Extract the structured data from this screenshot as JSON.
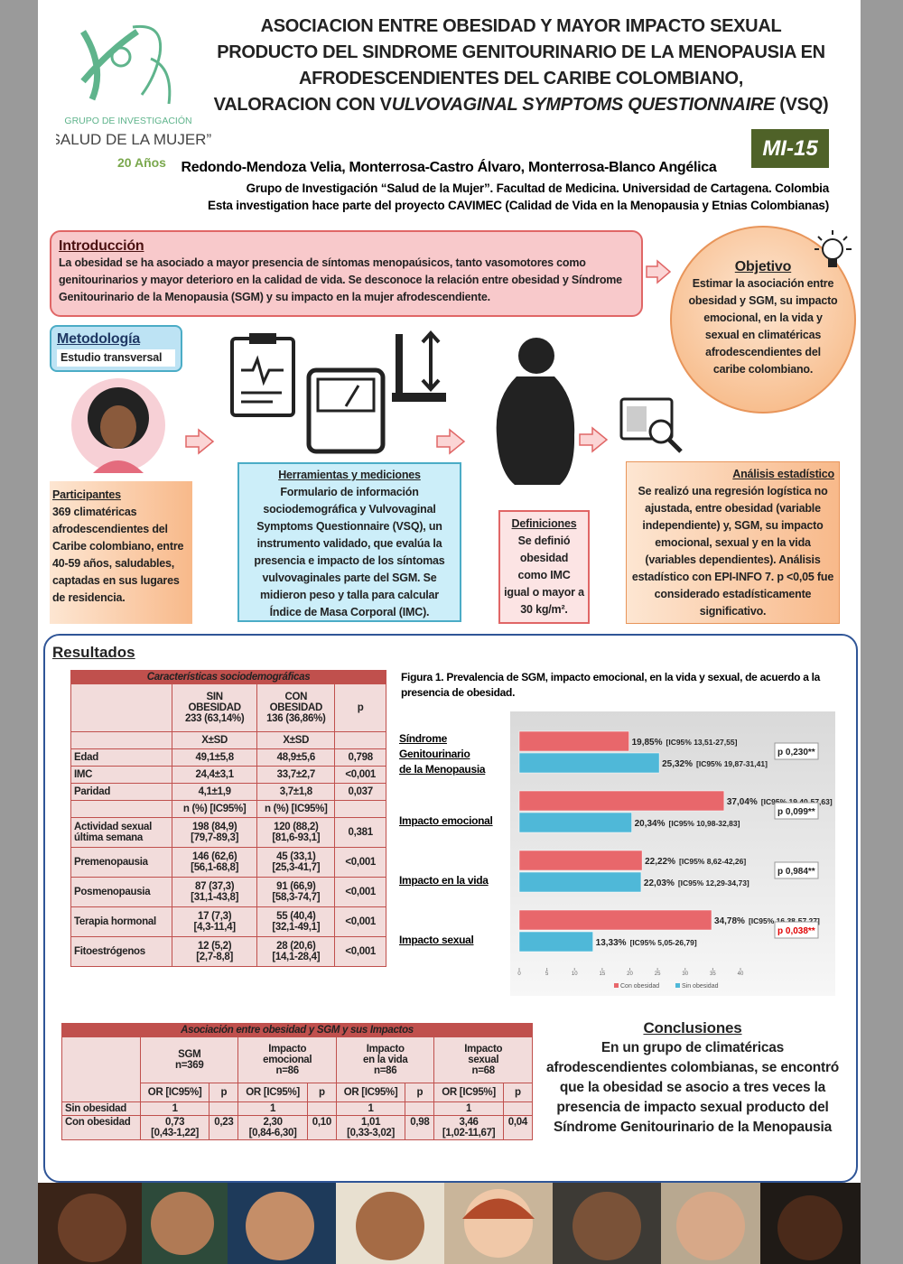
{
  "header": {
    "title": [
      "ASOCIACION ENTRE OBESIDAD Y MAYOR IMPACTO SEXUAL",
      "PRODUCTO DEL SINDROME GENITOURINARIO DE LA MENOPAUSIA EN",
      "AFRODESCENDIENTES DEL CARIBE COLOMBIANO,"
    ],
    "title_last": [
      "VALORACION CON V",
      "ULVOVAGINAL SYMPTOMS QUESTIONNAIRE",
      " (VSQ)"
    ],
    "code": "MI-15",
    "authors": "Redondo-Mendoza Velia, Monterrosa-Castro Álvaro, Monterrosa-Blanco Angélica",
    "affiliation": "Grupo de Investigación “Salud de la Mujer”. Facultad de Medicina. Universidad de Cartagena. Colombia",
    "project": "Esta investigation hace parte del proyecto CAVIMEC (Calidad de Vida en la Menopausia y Etnias Colombianas)"
  },
  "logo": {
    "group": "GRUPO DE INVESTIGACIÓN",
    "name": "“SALUD DE LA MUJER”",
    "years": "20 Años"
  },
  "introduction": {
    "heading": "Introducción",
    "text": "La obesidad se ha asociado a mayor presencia de síntomas menopaúsicos, tanto vasomotores como genitourinarios y mayor deterioro en la calidad de vida. Se desconoce la relación entre obesidad y Síndrome Genitourinario de la Menopausia (SGM) y su impacto en la mujer afrodescendiente."
  },
  "objective": {
    "heading": "Objetivo",
    "text": "Estimar la asociación entre obesidad y SGM, su impacto emocional, en la vida y sexual en climatéricas afrodescendientes del caribe colombiano."
  },
  "methodology": {
    "heading": "Metodología",
    "design": "Estudio transversal"
  },
  "participants": {
    "heading": "Participantes",
    "text": "369 climatéricas afrodescendientes del Caribe colombiano, entre 40-59 años, saludables, captadas en sus lugares de residencia."
  },
  "tools": {
    "heading": "Herramientas y mediciones",
    "text": "Formulario de información sociodemográfica y Vulvovaginal Symptoms Questionnaire (VSQ), un instrumento validado, que evalúa la presencia e impacto de los síntomas vulvovaginales parte del SGM. Se midieron peso y talla para calcular Índice de Masa Corporal (IMC)."
  },
  "definitions": {
    "heading": "Definiciones",
    "text": "Se definió obesidad como IMC igual o mayor a 30 kg/m²."
  },
  "analysis": {
    "heading": "Análisis estadístico",
    "text": "Se realizó una regresión logística no ajustada, entre obesidad (variable independiente) y, SGM, su impacto emocional, sexual y en la vida (variables dependientes). Análisis estadístico con EPI-INFO 7. p <0,05 fue considerado estadísticamente significativo."
  },
  "results": {
    "heading": "Resultados"
  },
  "table1": {
    "title": "Características sociodemográficas",
    "header": [
      null,
      "SIN\nOBESIDAD\n233 (63,14%)",
      "CON\nOBESIDAD\n136 (36,86%)",
      "p"
    ],
    "rows": [
      [
        null,
        "X±SD",
        "X±SD",
        null
      ],
      [
        "Edad",
        "49,1±5,8",
        "48,9±5,6",
        "0,798"
      ],
      [
        "IMC",
        "24,4±3,1",
        "33,7±2,7",
        "<0,001"
      ],
      [
        "Paridad",
        "4,1±1,9",
        "3,7±1,8",
        "0,037"
      ],
      [
        null,
        "n (%) [IC95%]",
        "n (%) [IC95%]",
        null
      ],
      [
        "Actividad sexual\núltima semana",
        "198 (84,9)\n[79,7-89,3]",
        "120 (88,2)\n[81,6-93,1]",
        "0,381"
      ],
      [
        "Premenopausia",
        "146 (62,6)\n[56,1-68,8]",
        "45 (33,1)\n[25,3-41,7]",
        "<0,001"
      ],
      [
        "Posmenopausia",
        "87 (37,3)\n[31,1-43,8]",
        "91 (66,9)\n[58,3-74,7]",
        "<0,001"
      ],
      [
        "Terapia hormonal",
        "17 (7,3)\n[4,3-11,4]",
        "55 (40,4)\n[32,1-49,1]",
        "<0,001"
      ],
      [
        "Fitoestrógenos",
        "12 (5,2)\n[2,7-8,8]",
        "28 (20,6)\n[14,1-28,4]",
        "<0,001"
      ]
    ]
  },
  "table2": {
    "title": "Asociación entre obesidad y SGM y sus Impactos",
    "groups": [
      "SGM\nn=369",
      "Impacto\nemocional\nn=86",
      "Impacto\nen la vida\nn=86",
      "Impacto\nsexual\nn=68"
    ],
    "subheaders": [
      [
        "OR [IC95%]",
        "p"
      ],
      [
        "OR [IC95%]",
        "p"
      ],
      [
        "OR [IC95%]",
        "p"
      ],
      [
        "OR [IC95%]",
        "p"
      ]
    ],
    "rows": [
      [
        "Sin obesidad",
        "1",
        null,
        "1",
        null,
        "1",
        null,
        "1",
        null
      ],
      [
        "Con obesidad",
        "0,73\n[0,43-1,22]",
        "0,23",
        "2,30\n[0,84-6,30]",
        "0,10",
        "1,01\n[0,33-3,02]",
        "0,98",
        "3,46\n[1,02-11,67]",
        "0,04"
      ]
    ]
  },
  "chart_data": {
    "type": "bar",
    "orientation": "horizontal",
    "title": "Figura 1. Prevalencia de SGM, impacto emocional, en la vida y sexual, de acuerdo a la presencia de obesidad.",
    "categories": [
      "Síndrome\nGenitourinario\nde la Menopausia",
      "Impacto emocional",
      "Impacto en la vida",
      "Impacto sexual"
    ],
    "series": [
      {
        "name": "Con obesidad",
        "color": "#e8676b",
        "values": [
          19.85,
          37.04,
          22.22,
          34.78
        ],
        "value_labels": [
          "19,85%",
          "37,04%",
          "22,22%",
          "34,78%"
        ],
        "ci_labels": [
          "[IC95% 13,51-27,55]",
          "[IC95% 19,40-57,63]",
          "[IC95% 8,62-42,26]",
          "[IC95% 16,38-57,27]"
        ]
      },
      {
        "name": "Sin obesidad",
        "color": "#4fb8d8",
        "values": [
          25.32,
          20.34,
          22.03,
          13.33
        ],
        "value_labels": [
          "25,32%",
          "20,34%",
          "22,03%",
          "13,33%"
        ],
        "ci_labels": [
          "[IC95% 19,87-31,41]",
          "[IC95% 10,98-32,83]",
          "[IC95% 12,29-34,73]",
          "[IC95% 5,05-26,79]"
        ]
      }
    ],
    "p_values": [
      "p 0,230**",
      "p 0,099**",
      "p 0,984**",
      "p 0,038**"
    ],
    "p_highlight": [
      false,
      false,
      false,
      true
    ],
    "highlight_color": "#e00000",
    "xlim": [
      0,
      40
    ],
    "xticks": [
      0,
      5,
      10,
      15,
      20,
      25,
      30,
      35,
      40
    ],
    "legend": "bottom"
  },
  "conclusions": {
    "heading": "Conclusiones",
    "text": "En un grupo de climatéricas afrodescendientes colombianas, se encontró que la obesidad se asocio a tres veces la presencia de impacto sexual producto del Síndrome Genitourinario de la Menopausia"
  }
}
